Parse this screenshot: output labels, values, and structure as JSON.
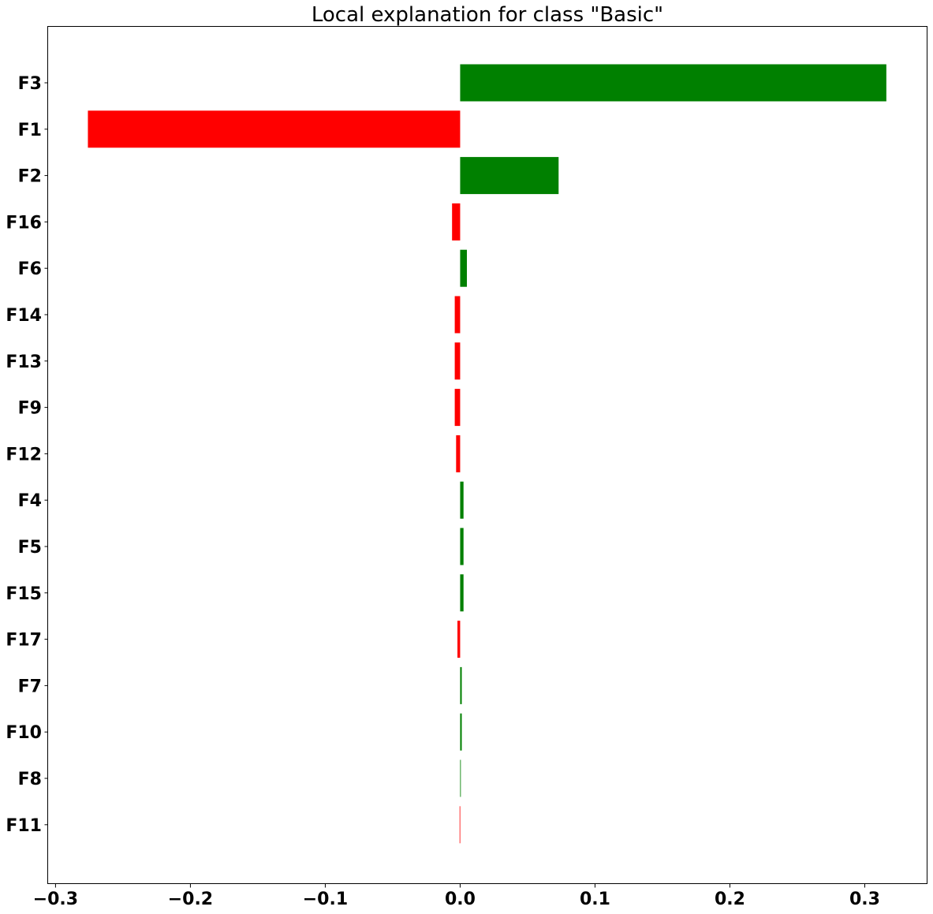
{
  "chart_data": {
    "type": "bar",
    "orientation": "horizontal",
    "title": "Local explanation for class \"Basic\"",
    "xlabel": "",
    "ylabel": "",
    "categories": [
      "F3",
      "F1",
      "F2",
      "F16",
      "F6",
      "F14",
      "F13",
      "F9",
      "F12",
      "F4",
      "F5",
      "F15",
      "F17",
      "F7",
      "F10",
      "F8",
      "F11"
    ],
    "values": [
      0.316,
      -0.276,
      0.073,
      -0.006,
      0.005,
      -0.004,
      -0.004,
      -0.004,
      -0.003,
      0.0025,
      0.0025,
      0.0025,
      -0.002,
      0.0012,
      0.0012,
      0.0005,
      -0.0004
    ],
    "xlim": [
      -0.3055,
      0.3465
    ],
    "xticks": [
      -0.3,
      -0.2,
      -0.1,
      0.0,
      0.1,
      0.2,
      0.3
    ],
    "xtick_labels": [
      "−0.3",
      "−0.2",
      "−0.1",
      "0.0",
      "0.1",
      "0.2",
      "0.3"
    ],
    "grid": false,
    "legend": "none",
    "colors": {
      "positive": "#008000",
      "negative": "#ff0000"
    }
  }
}
